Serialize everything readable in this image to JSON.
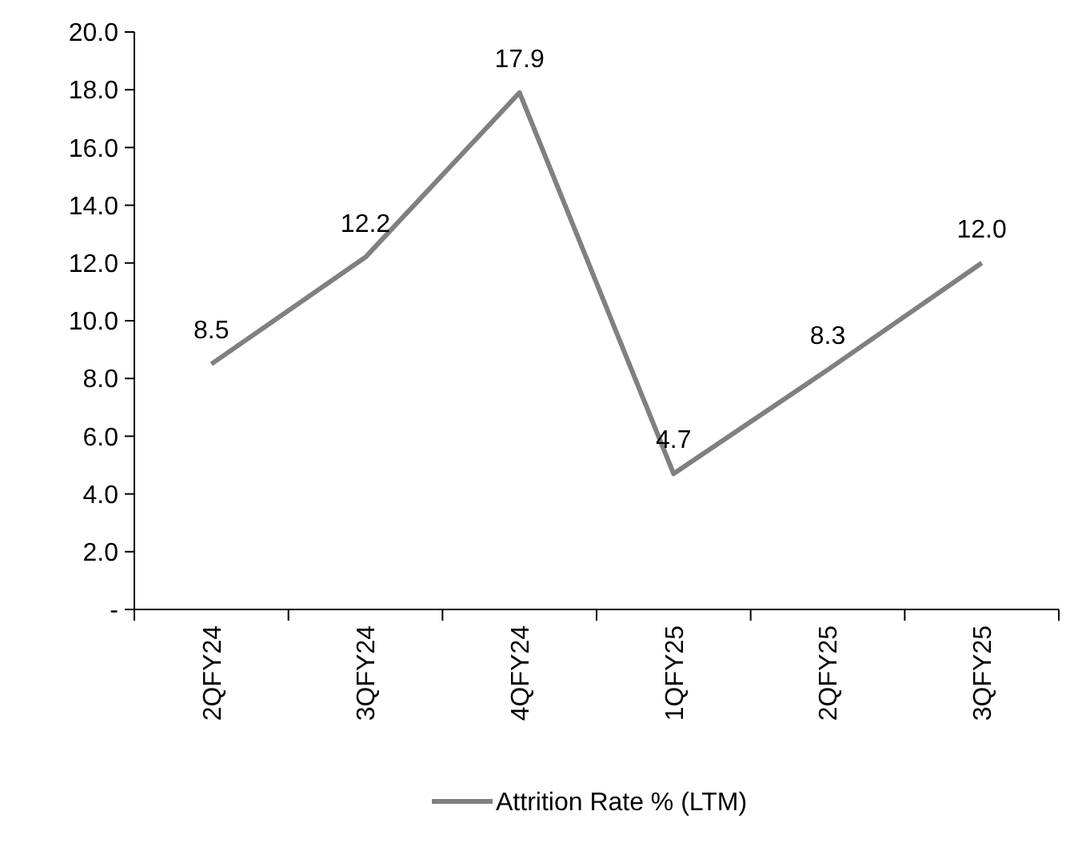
{
  "chart_data": {
    "type": "line",
    "categories": [
      "2QFY24",
      "3QFY24",
      "4QFY24",
      "1QFY25",
      "2QFY25",
      "3QFY25"
    ],
    "series": [
      {
        "name": "Attrition Rate % (LTM)",
        "color": "#808080",
        "values": [
          8.5,
          12.2,
          17.9,
          4.7,
          8.3,
          12.0
        ],
        "value_labels": [
          "8.5",
          "12.2",
          "17.9",
          "4.7",
          "8.3",
          "12.0"
        ]
      }
    ],
    "ylim": [
      0,
      20
    ],
    "yticks": [
      {
        "value": 0,
        "label": "-"
      },
      {
        "value": 2,
        "label": "2.0"
      },
      {
        "value": 4,
        "label": "4.0"
      },
      {
        "value": 6,
        "label": "6.0"
      },
      {
        "value": 8,
        "label": "8.0"
      },
      {
        "value": 10,
        "label": "10.0"
      },
      {
        "value": 12,
        "label": "12.0"
      },
      {
        "value": 14,
        "label": "14.0"
      },
      {
        "value": 16,
        "label": "16.0"
      },
      {
        "value": 18,
        "label": "18.0"
      },
      {
        "value": 20,
        "label": "20.0"
      }
    ],
    "grid": false,
    "legend": "bottom",
    "marker": "none",
    "line_style": "solid"
  }
}
